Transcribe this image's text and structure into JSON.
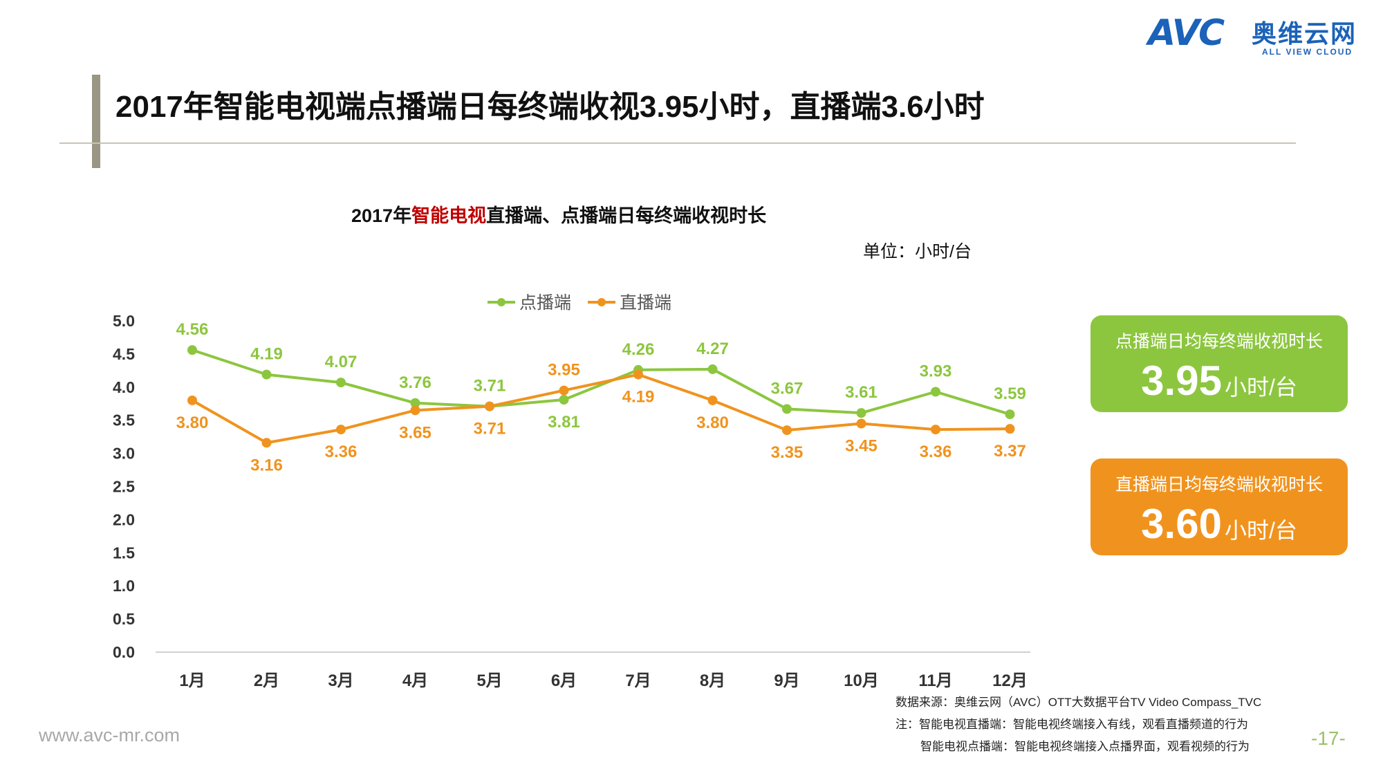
{
  "logo": {
    "text": "AVC",
    "cn": "奥维云网",
    "en": "ALL VIEW CLOUD"
  },
  "page_title": "2017年智能电视端点播端日每终端收视3.95小时，直播端3.6小时",
  "chart_title": {
    "prefix": "2017年",
    "highlight": "智能电视",
    "suffix": "直播端、点播端日每终端收视时长"
  },
  "unit": "单位：小时/台",
  "colors": {
    "vod": "#8cc63f",
    "live": "#f0931e",
    "highlight": "#c00000"
  },
  "chart_data": {
    "type": "line",
    "categories": [
      "1月",
      "2月",
      "3月",
      "4月",
      "5月",
      "6月",
      "7月",
      "8月",
      "9月",
      "10月",
      "11月",
      "12月"
    ],
    "series": [
      {
        "name": "点播端",
        "values": [
          4.56,
          4.19,
          4.07,
          3.76,
          3.71,
          3.81,
          4.26,
          4.27,
          3.67,
          3.61,
          3.93,
          3.59
        ]
      },
      {
        "name": "直播端",
        "values": [
          3.8,
          3.16,
          3.36,
          3.65,
          3.71,
          3.95,
          4.19,
          3.8,
          3.35,
          3.45,
          3.36,
          3.37
        ]
      }
    ],
    "y_ticks": [
      "0.0",
      "0.5",
      "1.0",
      "1.5",
      "2.0",
      "2.5",
      "3.0",
      "3.5",
      "4.0",
      "4.5",
      "5.0"
    ],
    "ylim": [
      0,
      5
    ],
    "grid": false,
    "legend": "top-center"
  },
  "cards": [
    {
      "label": "点播端日均每终端收视时长",
      "value": "3.95",
      "unit": "小时/台"
    },
    {
      "label": "直播端日均每终端收视时长",
      "value": "3.60",
      "unit": "小时/台"
    }
  ],
  "notes": [
    "数据来源：奥维云网（AVC）OTT大数据平台TV Video Compass_TVC",
    "注：智能电视直播端：智能电视终端接入有线，观看直播频道的行为",
    "智能电视点播端：智能电视终端接入点播界面，观看视频的行为"
  ],
  "footer": {
    "site": "www.avc-mr.com",
    "page": "-17-"
  }
}
